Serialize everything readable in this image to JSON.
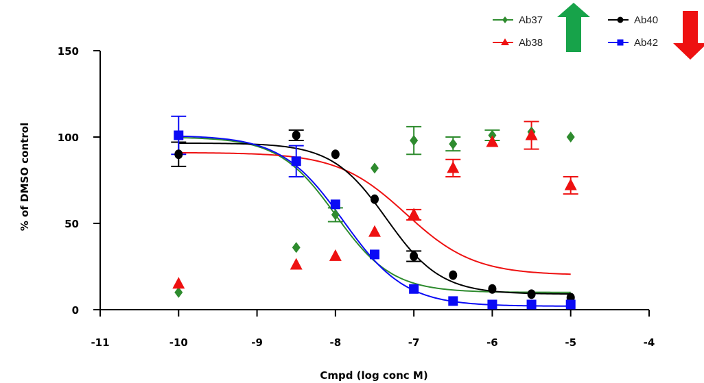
{
  "chart_data": {
    "type": "scatter",
    "xlabel": "Cmpd (log conc M)",
    "ylabel": "% of DMSO control",
    "xlim": [
      -11,
      -4
    ],
    "ylim": [
      0,
      150
    ],
    "x_ticks": [
      "-11",
      "-10",
      "-9",
      "-8",
      "-7",
      "-6",
      "-5",
      "-4"
    ],
    "y_ticks": [
      "0",
      "50",
      "100",
      "150"
    ],
    "grid": false,
    "legend_position": "top-right",
    "series": [
      {
        "name": "Ab37",
        "color": "#2e8b2e",
        "marker": "diamond",
        "x": [
          -10,
          -8.5,
          -8,
          -7.5,
          -7,
          -6.5,
          -6,
          -5.5,
          -5
        ],
        "y": [
          10,
          36,
          55,
          82,
          98,
          96,
          101,
          103,
          100
        ],
        "error": [
          0,
          0,
          4,
          0,
          8,
          4,
          3,
          0,
          0
        ],
        "fit": {
          "bottom": 10,
          "top": 100,
          "log_ec50": -8,
          "hill": 1.2
        }
      },
      {
        "name": "Ab38",
        "color": "#ee1111",
        "marker": "triangle",
        "x": [
          -10,
          -8.5,
          -8,
          -7.5,
          -7,
          -6.5,
          -6,
          -5.5,
          -5
        ],
        "y": [
          15,
          26,
          31,
          45,
          55,
          82,
          97,
          101,
          72
        ],
        "error": [
          0,
          0,
          0,
          0,
          3,
          5,
          0,
          8,
          5
        ],
        "fit": {
          "bottom": 20,
          "top": 91,
          "log_ec50": -7.1,
          "hill": 1.0
        }
      },
      {
        "name": "Ab40",
        "color": "#000000",
        "marker": "circle",
        "x": [
          -10,
          -8.5,
          -8,
          -7.5,
          -7,
          -6.5,
          -6,
          -5.5,
          -5
        ],
        "y": [
          90,
          101,
          90,
          64,
          31,
          20,
          12,
          9,
          7
        ],
        "error": [
          7,
          3,
          0,
          0,
          3,
          0,
          0,
          0,
          0
        ],
        "fit": {
          "bottom": 9,
          "top": 96.5,
          "log_ec50": -7.35,
          "hill": 1.25
        }
      },
      {
        "name": "Ab42",
        "color": "#0b0bf5",
        "marker": "square",
        "x": [
          -10,
          -8.5,
          -8,
          -7.5,
          -7,
          -6.5,
          -6,
          -5.5,
          -5
        ],
        "y": [
          101,
          86,
          61,
          32,
          12,
          5,
          3,
          3,
          3
        ],
        "error": [
          11,
          9,
          0,
          0,
          0,
          0,
          0,
          0,
          0
        ],
        "fit": {
          "bottom": 2,
          "top": 101,
          "log_ec50": -7.9,
          "hill": 1.1
        }
      }
    ],
    "legend_arrows": [
      {
        "after": "Ab37",
        "direction": "up",
        "color": "#17a34a"
      },
      {
        "after": "Ab40",
        "direction": "down",
        "color": "#ee1111"
      }
    ]
  }
}
